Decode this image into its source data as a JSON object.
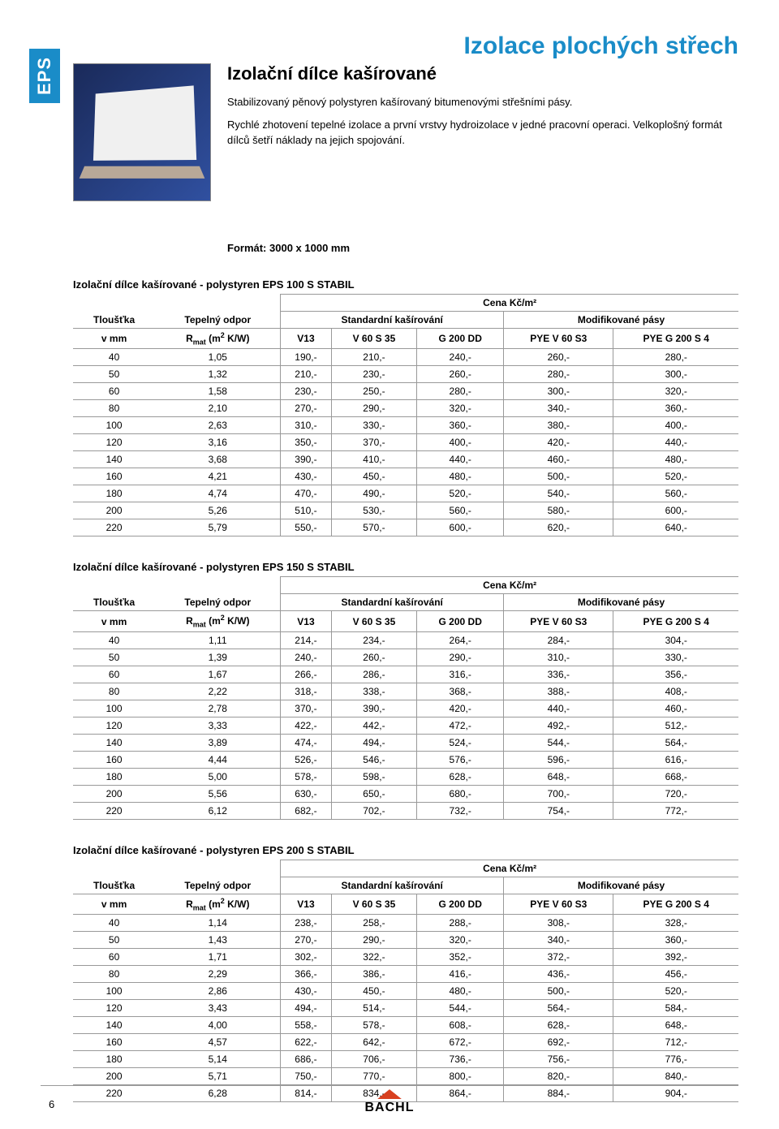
{
  "side_tab": "EPS",
  "main_title": "Izolace plochých střech",
  "subtitle": "Izolační dílce kašírované",
  "desc1": "Stabilizovaný pěnový polystyren kašírovaný bitumenovými střešními pásy.",
  "desc2": "Rychlé zhotovení tepelné izolace a první vrstvy hydroizolace v jedné pracovní operaci. Velkoplošný formát dílců šetří náklady na jejich spojování.",
  "format_label": "Formát: 3000 x 1000 mm",
  "price_unit": "Cena Kč/m²",
  "col_thickness": "Tloušťka",
  "col_thickness_sub": "v mm",
  "col_resist": "Tepelný odpor",
  "col_resist_sub": "Rmat (m² K/W)",
  "col_group_std": "Standardní kašírování",
  "col_group_mod": "Modifikované pásy",
  "col_v13": "V13",
  "col_v60": "V 60 S 35",
  "col_g200": "G 200 DD",
  "col_pye60": "PYE V 60 S3",
  "col_pyeg200": "PYE G 200 S 4",
  "tables": [
    {
      "title": "Izolační dílce kašírované - polystyren EPS 100 S STABIL",
      "rows": [
        [
          "40",
          "1,05",
          "190,-",
          "210,-",
          "240,-",
          "260,-",
          "280,-"
        ],
        [
          "50",
          "1,32",
          "210,-",
          "230,-",
          "260,-",
          "280,-",
          "300,-"
        ],
        [
          "60",
          "1,58",
          "230,-",
          "250,-",
          "280,-",
          "300,-",
          "320,-"
        ],
        [
          "80",
          "2,10",
          "270,-",
          "290,-",
          "320,-",
          "340,-",
          "360,-"
        ],
        [
          "100",
          "2,63",
          "310,-",
          "330,-",
          "360,-",
          "380,-",
          "400,-"
        ],
        [
          "120",
          "3,16",
          "350,-",
          "370,-",
          "400,-",
          "420,-",
          "440,-"
        ],
        [
          "140",
          "3,68",
          "390,-",
          "410,-",
          "440,-",
          "460,-",
          "480,-"
        ],
        [
          "160",
          "4,21",
          "430,-",
          "450,-",
          "480,-",
          "500,-",
          "520,-"
        ],
        [
          "180",
          "4,74",
          "470,-",
          "490,-",
          "520,-",
          "540,-",
          "560,-"
        ],
        [
          "200",
          "5,26",
          "510,-",
          "530,-",
          "560,-",
          "580,-",
          "600,-"
        ],
        [
          "220",
          "5,79",
          "550,-",
          "570,-",
          "600,-",
          "620,-",
          "640,-"
        ]
      ]
    },
    {
      "title": "Izolační dílce kašírované - polystyren EPS 150 S STABIL",
      "rows": [
        [
          "40",
          "1,11",
          "214,-",
          "234,-",
          "264,-",
          "284,-",
          "304,-"
        ],
        [
          "50",
          "1,39",
          "240,-",
          "260,-",
          "290,-",
          "310,-",
          "330,-"
        ],
        [
          "60",
          "1,67",
          "266,-",
          "286,-",
          "316,-",
          "336,-",
          "356,-"
        ],
        [
          "80",
          "2,22",
          "318,-",
          "338,-",
          "368,-",
          "388,-",
          "408,-"
        ],
        [
          "100",
          "2,78",
          "370,-",
          "390,-",
          "420,-",
          "440,-",
          "460,-"
        ],
        [
          "120",
          "3,33",
          "422,-",
          "442,-",
          "472,-",
          "492,-",
          "512,-"
        ],
        [
          "140",
          "3,89",
          "474,-",
          "494,-",
          "524,-",
          "544,-",
          "564,-"
        ],
        [
          "160",
          "4,44",
          "526,-",
          "546,-",
          "576,-",
          "596,-",
          "616,-"
        ],
        [
          "180",
          "5,00",
          "578,-",
          "598,-",
          "628,-",
          "648,-",
          "668,-"
        ],
        [
          "200",
          "5,56",
          "630,-",
          "650,-",
          "680,-",
          "700,-",
          "720,-"
        ],
        [
          "220",
          "6,12",
          "682,-",
          "702,-",
          "732,-",
          "754,-",
          "772,-"
        ]
      ]
    },
    {
      "title": "Izolační dílce kašírované - polystyren EPS 200 S STABIL",
      "rows": [
        [
          "40",
          "1,14",
          "238,-",
          "258,-",
          "288,-",
          "308,-",
          "328,-"
        ],
        [
          "50",
          "1,43",
          "270,-",
          "290,-",
          "320,-",
          "340,-",
          "360,-"
        ],
        [
          "60",
          "1,71",
          "302,-",
          "322,-",
          "352,-",
          "372,-",
          "392,-"
        ],
        [
          "80",
          "2,29",
          "366,-",
          "386,-",
          "416,-",
          "436,-",
          "456,-"
        ],
        [
          "100",
          "2,86",
          "430,-",
          "450,-",
          "480,-",
          "500,-",
          "520,-"
        ],
        [
          "120",
          "3,43",
          "494,-",
          "514,-",
          "544,-",
          "564,-",
          "584,-"
        ],
        [
          "140",
          "4,00",
          "558,-",
          "578,-",
          "608,-",
          "628,-",
          "648,-"
        ],
        [
          "160",
          "4,57",
          "622,-",
          "642,-",
          "672,-",
          "692,-",
          "712,-"
        ],
        [
          "180",
          "5,14",
          "686,-",
          "706,-",
          "736,-",
          "756,-",
          "776,-"
        ],
        [
          "200",
          "5,71",
          "750,-",
          "770,-",
          "800,-",
          "820,-",
          "840,-"
        ],
        [
          "220",
          "6,28",
          "814,-",
          "834,-",
          "864,-",
          "884,-",
          "904,-"
        ]
      ]
    }
  ],
  "page_number": "6",
  "logo_text": "BACHL"
}
